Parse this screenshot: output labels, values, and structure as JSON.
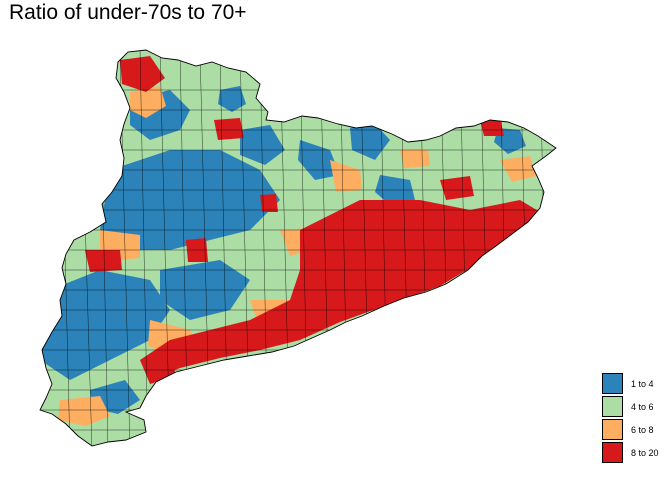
{
  "title": "Ratio of under-70s to 70+",
  "legend": {
    "items": [
      {
        "label": "1 to 4",
        "color": "#2b83ba"
      },
      {
        "label": "4 to 6",
        "color": "#abdda4"
      },
      {
        "label": "6 to 8",
        "color": "#fdae61"
      },
      {
        "label": "8 to 20",
        "color": "#d7191c"
      }
    ]
  },
  "map": {
    "region": "Catalonia",
    "border_color": "#000000",
    "distribution": "blue inland west and north, light green across the north and east, orange scattered, red concentrated along the coast and central east"
  }
}
